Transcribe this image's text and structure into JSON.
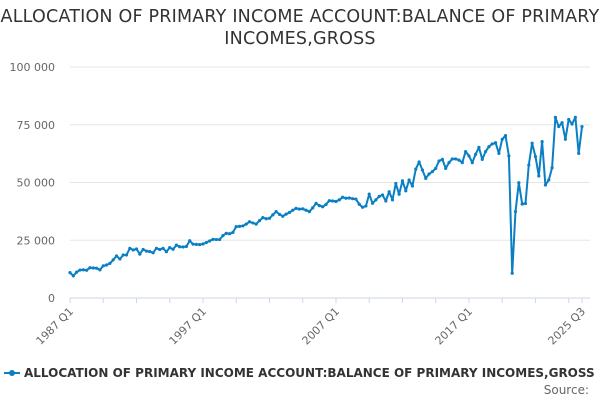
{
  "title": "ALLOCATION OF PRIMARY INCOME ACCOUNT:BALANCE OF PRIMARY INCOMES,GROSS",
  "source_label": "Source:",
  "colors": {
    "series": "#0a7fc4",
    "grid": "#e6e6e6",
    "text": "#333333"
  },
  "chart_data": {
    "type": "line",
    "title": "ALLOCATION OF PRIMARY INCOME ACCOUNT:BALANCE OF PRIMARY INCOMES,GROSS",
    "x_start": "1987 Q1",
    "x_end": "2025 Q3",
    "x_frequency": "quarterly",
    "x_tick_labels": [
      "1987 Q1",
      "1997 Q1",
      "2007 Q1",
      "2017 Q1",
      "2025 Q3"
    ],
    "y_tick_labels": [
      "0",
      "25 000",
      "50 000",
      "75 000",
      "100 000"
    ],
    "y_ticks": [
      0,
      25000,
      50000,
      75000,
      100000
    ],
    "ylim": [
      0,
      100000
    ],
    "grid": true,
    "legend_position": "bottom",
    "series": [
      {
        "name": "ALLOCATION OF PRIMARY INCOME ACCOUNT:BALANCE OF PRIMARY INCOMES,GROSS",
        "values": [
          11000,
          9600,
          11200,
          12100,
          12200,
          12000,
          13100,
          13000,
          12900,
          12200,
          13900,
          14300,
          15000,
          16500,
          18200,
          16900,
          18600,
          18600,
          21500,
          20800,
          21200,
          19000,
          21000,
          20300,
          20100,
          19600,
          21500,
          21000,
          21500,
          20000,
          21800,
          21100,
          22900,
          22200,
          22100,
          22300,
          24800,
          23300,
          23200,
          23100,
          23400,
          24000,
          24700,
          25400,
          25300,
          25300,
          27000,
          28000,
          27800,
          28400,
          30900,
          31000,
          31200,
          32000,
          33000,
          32500,
          32000,
          33500,
          34800,
          34300,
          34500,
          36000,
          37400,
          36200,
          35400,
          36300,
          37000,
          38000,
          38800,
          38500,
          38600,
          38000,
          37400,
          39000,
          41000,
          40000,
          39500,
          40500,
          42100,
          42000,
          41800,
          42500,
          43600,
          43200,
          43300,
          43000,
          42800,
          40600,
          39300,
          39800,
          45000,
          41000,
          42500,
          44000,
          44600,
          42000,
          46000,
          42500,
          49600,
          44900,
          50700,
          46400,
          51100,
          48500,
          55800,
          58900,
          55400,
          51800,
          53700,
          54700,
          56100,
          59300,
          60000,
          56100,
          58600,
          60200,
          60200,
          59700,
          58600,
          63400,
          61500,
          58600,
          62200,
          65200,
          60000,
          63400,
          65500,
          66700,
          67200,
          62600,
          68700,
          70300,
          61500,
          10700,
          37400,
          49900,
          40700,
          40900,
          57600,
          67000,
          61200,
          52800,
          67700,
          48900,
          51100,
          56400,
          78200,
          74200,
          75900,
          68700,
          77300,
          75300,
          78200,
          62600,
          74200
        ]
      }
    ]
  }
}
